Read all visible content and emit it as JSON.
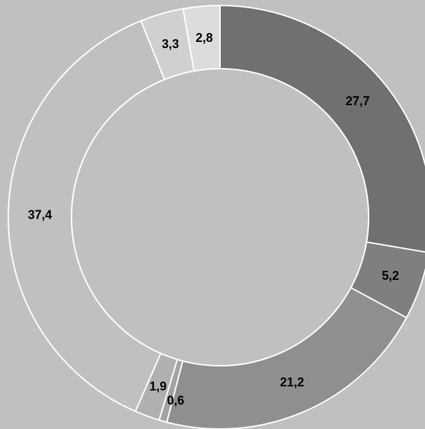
{
  "chart_data": {
    "type": "pie",
    "variant": "donut",
    "title": "",
    "start_angle_deg": 0,
    "direction": "clockwise",
    "slices": [
      {
        "value": 27.7,
        "label": "27,7",
        "color": "#707070"
      },
      {
        "value": 5.2,
        "label": "5,2",
        "color": "#7f7f7f"
      },
      {
        "value": 21.2,
        "label": "21,2",
        "color": "#8f8f8f"
      },
      {
        "value": 0.6,
        "label": "0,6",
        "color": "#a3a3a3"
      },
      {
        "value": 1.9,
        "label": "1,9",
        "color": "#b0b0b0"
      },
      {
        "value": 37.4,
        "label": "37,4",
        "color": "#c0c0c0"
      },
      {
        "value": 3.3,
        "label": "3,3",
        "color": "#d0d0d0"
      },
      {
        "value": 2.8,
        "label": "2,8",
        "color": "#dcdcdc"
      }
    ],
    "background_color": "#c0c0c0",
    "separator_color": "#ffffff",
    "legend": "none",
    "grid": false
  }
}
